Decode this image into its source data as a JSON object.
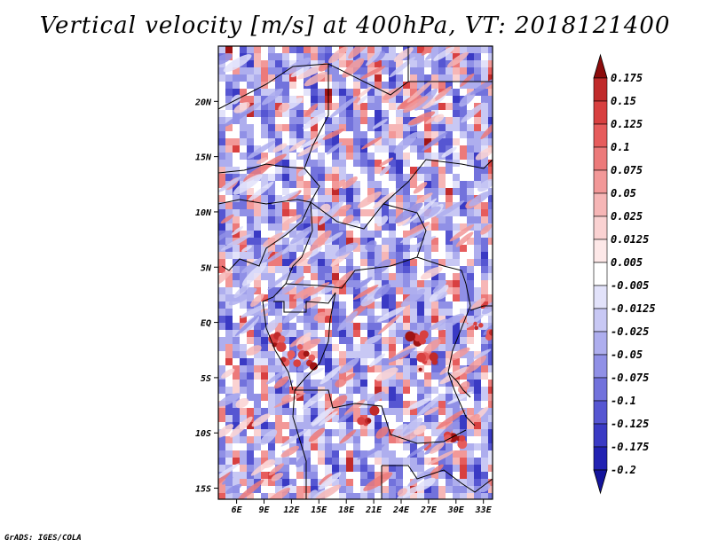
{
  "title": "Vertical velocity [m/s] at 400hPa, VT: 2018121400",
  "footer": "GrADS: IGES/COLA",
  "map": {
    "lon_range": [
      4,
      34
    ],
    "lat_range": [
      -16,
      25
    ],
    "lon_ticks": [
      {
        "value": 6,
        "label": "6E"
      },
      {
        "value": 9,
        "label": "9E"
      },
      {
        "value": 12,
        "label": "12E"
      },
      {
        "value": 15,
        "label": "15E"
      },
      {
        "value": 18,
        "label": "18E"
      },
      {
        "value": 21,
        "label": "21E"
      },
      {
        "value": 24,
        "label": "24E"
      },
      {
        "value": 27,
        "label": "27E"
      },
      {
        "value": 30,
        "label": "30E"
      },
      {
        "value": 33,
        "label": "33E"
      }
    ],
    "lat_ticks": [
      {
        "value": 20,
        "label": "20N"
      },
      {
        "value": 15,
        "label": "15N"
      },
      {
        "value": 10,
        "label": "10N"
      },
      {
        "value": 5,
        "label": "5N"
      },
      {
        "value": 0,
        "label": "EQ"
      },
      {
        "value": -5,
        "label": "5S"
      },
      {
        "value": -10,
        "label": "10S"
      },
      {
        "value": -15,
        "label": "15S"
      }
    ]
  },
  "colorbar": {
    "units": "m/s",
    "levels": [
      {
        "label": "0.175",
        "color": "#a01414"
      },
      {
        "label": "0.15",
        "color": "#c02a2a"
      },
      {
        "label": "0.125",
        "color": "#d84040"
      },
      {
        "label": "0.1",
        "color": "#e65c5c"
      },
      {
        "label": "0.075",
        "color": "#ec7a7a"
      },
      {
        "label": "0.05",
        "color": "#f29898"
      },
      {
        "label": "0.025",
        "color": "#f6b6b6"
      },
      {
        "label": "0.0125",
        "color": "#fad2d2"
      },
      {
        "label": "0.005",
        "color": "#fde8e8"
      },
      {
        "label": "-0.005",
        "color": "#ffffff"
      },
      {
        "label": "-0.0125",
        "color": "#e2e2fa"
      },
      {
        "label": "-0.025",
        "color": "#c8c8f4"
      },
      {
        "label": "-0.05",
        "color": "#aeaeee"
      },
      {
        "label": "-0.075",
        "color": "#9090e6"
      },
      {
        "label": "-0.1",
        "color": "#7272dc"
      },
      {
        "label": "-0.125",
        "color": "#5656d2"
      },
      {
        "label": "-0.175",
        "color": "#3a3ac4"
      },
      {
        "label": "-0.2",
        "color": "#2222b2"
      }
    ],
    "top_triangle_color": "#8c0c0c",
    "bottom_triangle_color": "#14149c",
    "bottom_segment_color": "#1a1aa6"
  }
}
